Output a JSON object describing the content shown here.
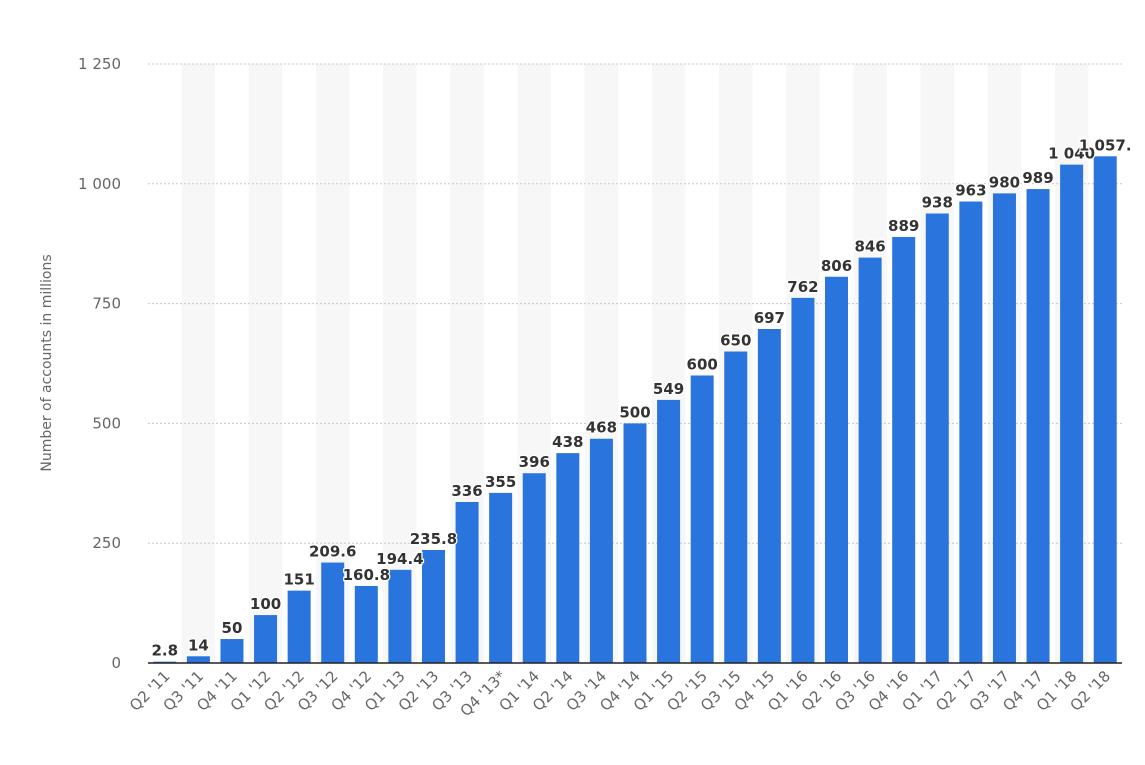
{
  "chart_data": {
    "type": "bar",
    "ylabel": "Number of accounts in millions",
    "ylim": [
      0,
      1250
    ],
    "yticks": [
      0,
      250,
      500,
      750,
      1000,
      1250
    ],
    "ytick_labels": [
      "0",
      "250",
      "500",
      "750",
      "1 000",
      "1 250"
    ],
    "grid": "horizontal dashed",
    "categories": [
      "Q2 '11",
      "Q3 '11",
      "Q4 '11",
      "Q1 '12",
      "Q2 '12",
      "Q3 '12",
      "Q4 '12",
      "Q1 '13",
      "Q2 '13",
      "Q3 '13",
      "Q4 '13*",
      "Q1 '14",
      "Q2 '14",
      "Q3 '14",
      "Q4 '14",
      "Q1 '15",
      "Q2 '15",
      "Q3 '15",
      "Q4 '15",
      "Q1 '16",
      "Q2 '16",
      "Q3 '16",
      "Q4 '16",
      "Q1 '17",
      "Q2 '17",
      "Q3 '17",
      "Q4 '17",
      "Q1 '18",
      "Q2 '18"
    ],
    "values": [
      2.8,
      14,
      50,
      100,
      151,
      209.6,
      160.8,
      194.4,
      235.8,
      336,
      355,
      396,
      438,
      468,
      500,
      549,
      600,
      650,
      697,
      762,
      806,
      846,
      889,
      938,
      963,
      980,
      989,
      1040,
      1057.4
    ],
    "value_labels": [
      "2.8",
      "14",
      "50",
      "100",
      "151",
      "209.6",
      "160.8",
      "194.4",
      "235.8",
      "336",
      "355",
      "396",
      "438",
      "468",
      "500",
      "549",
      "600",
      "650",
      "697",
      "762",
      "806",
      "846",
      "889",
      "938",
      "963",
      "980",
      "989",
      "1 040",
      "1 057."
    ],
    "bar_color": "#2a74dd",
    "stripe_color": "#f7f7f7",
    "grid_color": "#c8c8c8",
    "axis_text_color": "#666666",
    "label_text_color": "#333333"
  }
}
